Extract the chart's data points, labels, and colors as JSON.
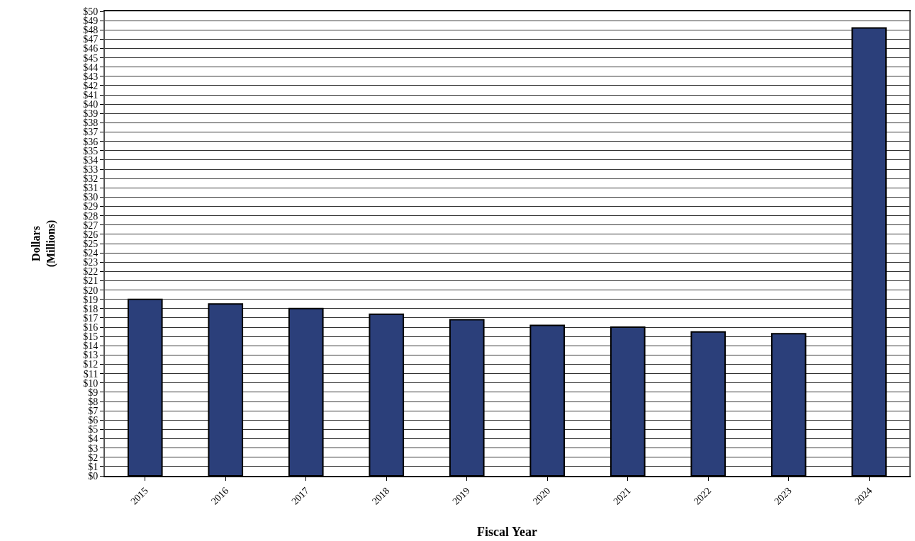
{
  "chart_data": {
    "type": "bar",
    "xlabel": "Fiscal Year",
    "ylabel": "Dollars\n(Millions)",
    "categories": [
      "2015",
      "2016",
      "2017",
      "2018",
      "2019",
      "2020",
      "2021",
      "2022",
      "2023",
      "2024"
    ],
    "values": [
      19.0,
      18.5,
      18.0,
      17.4,
      16.8,
      16.2,
      16.0,
      15.5,
      15.3,
      48.2
    ],
    "color": "#2b3f7a",
    "grid": "y",
    "ylim": [
      0,
      50
    ],
    "yticks": [
      {
        "value": 0,
        "label": "$0"
      },
      {
        "value": 1,
        "label": "$1"
      },
      {
        "value": 2,
        "label": "$2"
      },
      {
        "value": 3,
        "label": "$3"
      },
      {
        "value": 4,
        "label": "$4"
      },
      {
        "value": 5,
        "label": "$5"
      },
      {
        "value": 6,
        "label": "$6"
      },
      {
        "value": 7,
        "label": "$7"
      },
      {
        "value": 8,
        "label": "$8"
      },
      {
        "value": 9,
        "label": "$9"
      },
      {
        "value": 10,
        "label": "$10"
      },
      {
        "value": 11,
        "label": "$11"
      },
      {
        "value": 12,
        "label": "$12"
      },
      {
        "value": 13,
        "label": "$13"
      },
      {
        "value": 14,
        "label": "$14"
      },
      {
        "value": 15,
        "label": "$15"
      },
      {
        "value": 16,
        "label": "$16"
      },
      {
        "value": 17,
        "label": "$17"
      },
      {
        "value": 18,
        "label": "$18"
      },
      {
        "value": 19,
        "label": "$19"
      },
      {
        "value": 20,
        "label": "$20"
      },
      {
        "value": 21,
        "label": "$21"
      },
      {
        "value": 22,
        "label": "$22"
      },
      {
        "value": 23,
        "label": "$23"
      },
      {
        "value": 24,
        "label": "$24"
      },
      {
        "value": 25,
        "label": "$25"
      },
      {
        "value": 26,
        "label": "$26"
      },
      {
        "value": 27,
        "label": "$27"
      },
      {
        "value": 28,
        "label": "$28"
      },
      {
        "value": 29,
        "label": "$29"
      },
      {
        "value": 30,
        "label": "$30"
      },
      {
        "value": 31,
        "label": "$31"
      },
      {
        "value": 32,
        "label": "$32"
      },
      {
        "value": 33,
        "label": "$33"
      },
      {
        "value": 34,
        "label": "$34"
      },
      {
        "value": 35,
        "label": "$35"
      },
      {
        "value": 36,
        "label": "$36"
      },
      {
        "value": 37,
        "label": "$37"
      },
      {
        "value": 38,
        "label": "$38"
      },
      {
        "value": 39,
        "label": "$39"
      },
      {
        "value": 40,
        "label": "$40"
      },
      {
        "value": 41,
        "label": "$41"
      },
      {
        "value": 42,
        "label": "$42"
      },
      {
        "value": 43,
        "label": "$43"
      },
      {
        "value": 44,
        "label": "$44"
      },
      {
        "value": 45,
        "label": "$45"
      },
      {
        "value": 46,
        "label": "$46"
      },
      {
        "value": 47,
        "label": "$47"
      },
      {
        "value": 48,
        "label": "$48"
      },
      {
        "value": 49,
        "label": "$49"
      },
      {
        "value": 50,
        "label": "$50"
      }
    ]
  }
}
